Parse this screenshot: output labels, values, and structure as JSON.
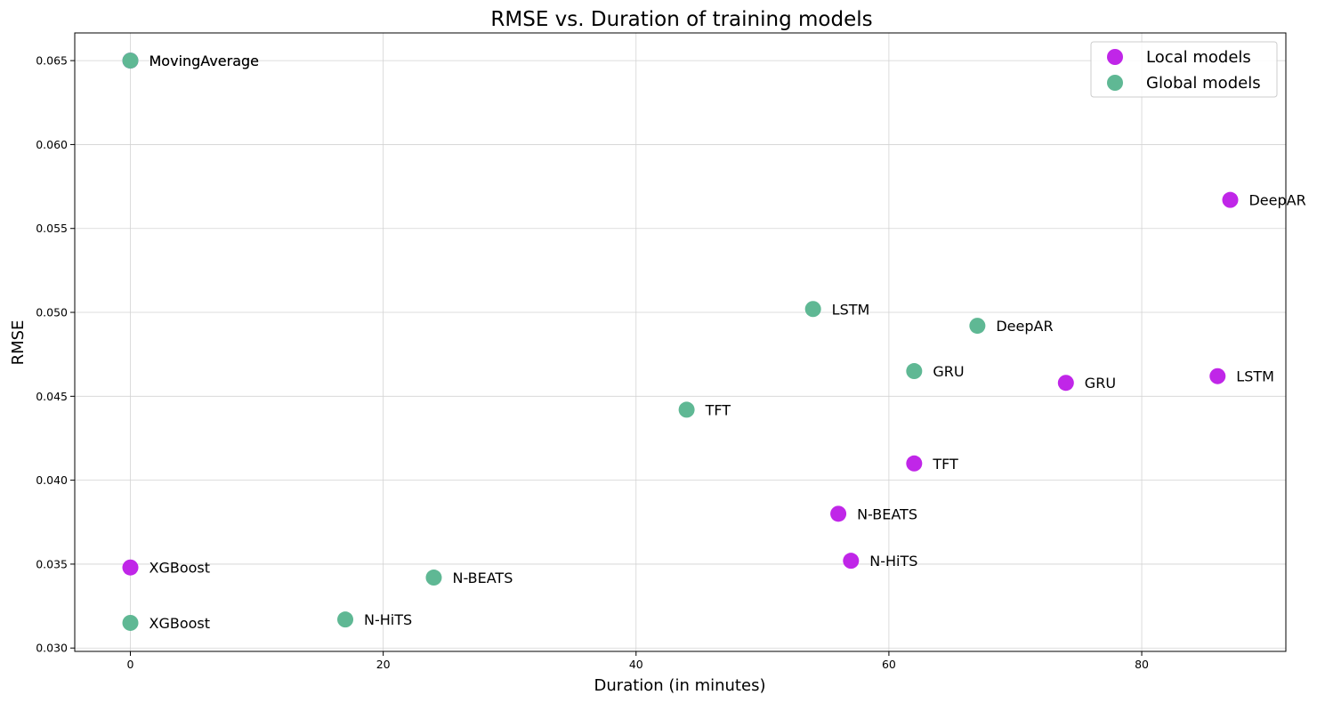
{
  "chart_data": {
    "type": "scatter",
    "title": "RMSE vs. Duration of training models",
    "xlabel": "Duration (in minutes)",
    "ylabel": "RMSE",
    "xlim": [
      -4.4,
      91.4
    ],
    "ylim": [
      0.0298,
      0.06665
    ],
    "xticks": [
      0,
      20,
      40,
      60,
      80
    ],
    "xtick_labels": [
      "0",
      "20",
      "40",
      "60",
      "80"
    ],
    "yticks": [
      0.03,
      0.035,
      0.04,
      0.045,
      0.05,
      0.055,
      0.06,
      0.065
    ],
    "ytick_labels": [
      "0.030",
      "0.035",
      "0.040",
      "0.045",
      "0.050",
      "0.055",
      "0.060",
      "0.065"
    ],
    "grid": true,
    "legend_position": "top-right",
    "series": [
      {
        "name": "Local models",
        "color": "#c026e8",
        "points": [
          {
            "label": "MovingAverage",
            "x": 0,
            "y": 0.065
          },
          {
            "label": "XGBoost",
            "x": 0,
            "y": 0.0348
          },
          {
            "label": "N-HiTS",
            "x": 57,
            "y": 0.0352
          },
          {
            "label": "N-BEATS",
            "x": 56,
            "y": 0.038
          },
          {
            "label": "TFT",
            "x": 62,
            "y": 0.041
          },
          {
            "label": "GRU",
            "x": 74,
            "y": 0.0458
          },
          {
            "label": "LSTM",
            "x": 86,
            "y": 0.0462
          },
          {
            "label": "DeepAR",
            "x": 87,
            "y": 0.0567
          }
        ]
      },
      {
        "name": "Global models",
        "color": "#5fb894",
        "points": [
          {
            "label": "MovingAverage",
            "x": 0,
            "y": 0.065
          },
          {
            "label": "XGBoost",
            "x": 0,
            "y": 0.0315
          },
          {
            "label": "N-HiTS",
            "x": 17,
            "y": 0.0317
          },
          {
            "label": "N-BEATS",
            "x": 24,
            "y": 0.0342
          },
          {
            "label": "TFT",
            "x": 44,
            "y": 0.0442
          },
          {
            "label": "LSTM",
            "x": 54,
            "y": 0.0502
          },
          {
            "label": "GRU",
            "x": 62,
            "y": 0.0465
          },
          {
            "label": "DeepAR",
            "x": 67,
            "y": 0.0492
          }
        ]
      }
    ]
  }
}
